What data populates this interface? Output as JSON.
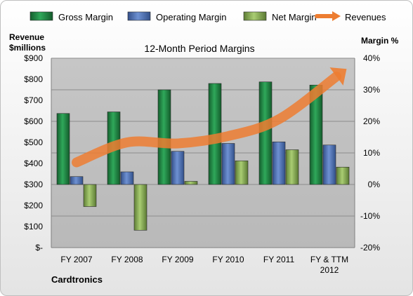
{
  "chart_data": {
    "type": "bar",
    "title": "12-Month Period Margins",
    "ylabel_left": [
      "Revenue",
      "$millions"
    ],
    "ylabel_right": "Margin %",
    "company": "Cardtronics",
    "categories": [
      [
        "FY 2007"
      ],
      [
        "FY 2008"
      ],
      [
        "FY 2009"
      ],
      [
        "FY 2010"
      ],
      [
        "FY 2011"
      ],
      [
        "FY & TTM",
        "2012"
      ]
    ],
    "left_ticks": [
      "$-",
      "$100",
      "$200",
      "$300",
      "$400",
      "$500",
      "$600",
      "$700",
      "$800",
      "$900"
    ],
    "right_ticks": [
      "-20%",
      "-10%",
      "0%",
      "10%",
      "20%",
      "30%",
      "40%"
    ],
    "ylim_left": [
      0,
      900
    ],
    "ylim_right": [
      -20,
      40
    ],
    "series": [
      {
        "name": "Gross Margin",
        "color": "#1e8b43",
        "values": [
          22.5,
          23.0,
          30.0,
          32.0,
          32.5,
          31.5
        ]
      },
      {
        "name": "Operating Margin",
        "color": "#4f73b8",
        "values": [
          2.5,
          4.0,
          10.5,
          13.0,
          13.5,
          12.5
        ]
      },
      {
        "name": "Net Margin",
        "color": "#8db357",
        "values": [
          -7.0,
          -14.5,
          1.0,
          7.5,
          11.0,
          5.5
        ]
      }
    ],
    "revenues": {
      "name": "Revenues",
      "color": "#ed7d31",
      "values": [
        405,
        500,
        495,
        530,
        610,
        780
      ]
    },
    "legend_position": "top"
  }
}
